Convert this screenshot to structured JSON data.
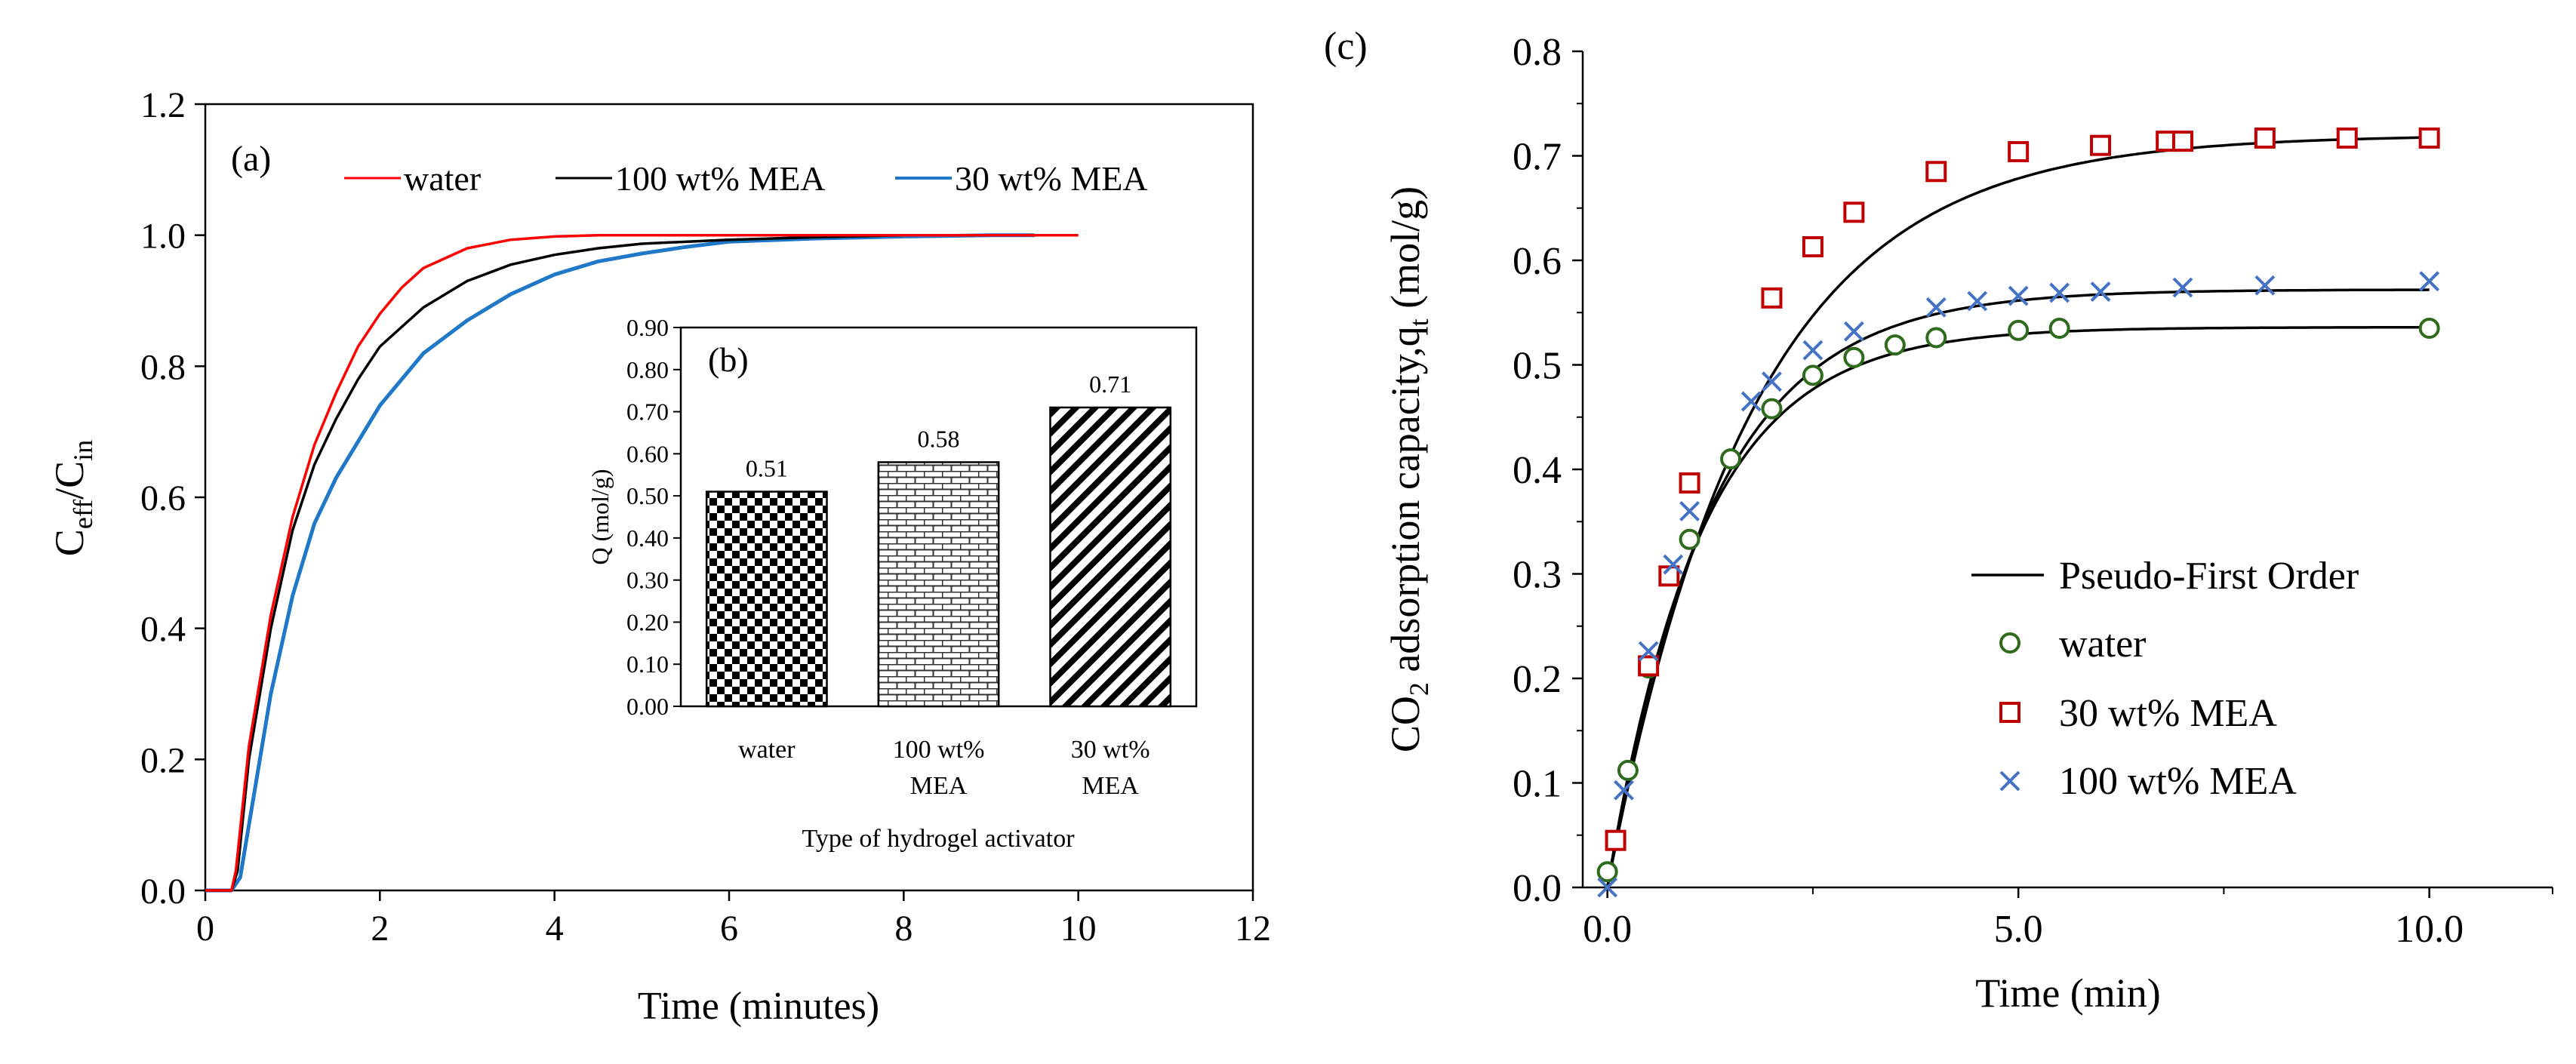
{
  "chart_data": [
    {
      "id": "a",
      "panel_label": "(a)",
      "type": "line",
      "xlabel": "Time (minutes)",
      "ylabel_main": "C",
      "ylabel_sub1": "eff",
      "ylabel_sep": "/C",
      "ylabel_sub2": "in",
      "xlim": [
        0,
        12
      ],
      "ylim": [
        0,
        1.2
      ],
      "xticks": [
        0,
        2,
        4,
        6,
        8,
        10,
        12
      ],
      "xtick_labels": [
        "0",
        "2",
        "4",
        "6",
        "8",
        "10",
        "12"
      ],
      "yticks": [
        0,
        0.2,
        0.4,
        0.6,
        0.8,
        1.0,
        1.2
      ],
      "ytick_labels": [
        "0.0",
        "0.2",
        "0.4",
        "0.6",
        "0.8",
        "1.0",
        "1.2"
      ],
      "legend_position": "top",
      "series": [
        {
          "name": "water",
          "color": "#ff0000",
          "x": [
            0,
            0.3,
            0.35,
            0.5,
            0.75,
            1.0,
            1.25,
            1.5,
            1.75,
            2.0,
            2.25,
            2.5,
            3.0,
            3.5,
            4.0,
            4.5,
            5.0,
            6.0,
            8.0,
            10.0
          ],
          "y": [
            0,
            0,
            0.03,
            0.22,
            0.42,
            0.57,
            0.68,
            0.76,
            0.83,
            0.88,
            0.92,
            0.95,
            0.98,
            0.993,
            0.998,
            1.0,
            1.0,
            1.0,
            1.0,
            1.0
          ]
        },
        {
          "name": "100 wt% MEA",
          "color": "#000000",
          "x": [
            0,
            0.3,
            0.37,
            0.5,
            0.75,
            1.0,
            1.25,
            1.5,
            1.75,
            2.0,
            2.5,
            3.0,
            3.5,
            4.0,
            4.5,
            5.0,
            6.0,
            7.0,
            8.0,
            9.0,
            9.5
          ],
          "y": [
            0,
            0,
            0.03,
            0.2,
            0.4,
            0.55,
            0.65,
            0.72,
            0.78,
            0.83,
            0.89,
            0.93,
            0.955,
            0.97,
            0.98,
            0.987,
            0.993,
            0.997,
            1.0,
            1.0,
            1.0
          ]
        },
        {
          "name": "30 wt% MEA",
          "color": "#1f78c8",
          "x": [
            0,
            0.3,
            0.4,
            0.5,
            0.75,
            1.0,
            1.25,
            1.5,
            2.0,
            2.5,
            3.0,
            3.5,
            4.0,
            4.5,
            5.0,
            5.5,
            6.0,
            7.0,
            8.0,
            9.0,
            9.5
          ],
          "y": [
            0,
            0,
            0.02,
            0.1,
            0.3,
            0.45,
            0.56,
            0.63,
            0.74,
            0.82,
            0.87,
            0.91,
            0.94,
            0.96,
            0.972,
            0.982,
            0.99,
            0.995,
            0.998,
            1.0,
            1.0
          ]
        }
      ]
    },
    {
      "id": "b",
      "panel_label": "(b)",
      "type": "bar",
      "xlabel": "Type of hydrogel activator",
      "ylabel": "Q (mol/g)",
      "ylim": [
        0,
        0.9
      ],
      "yticks": [
        0,
        0.1,
        0.2,
        0.3,
        0.4,
        0.5,
        0.6,
        0.7,
        0.8,
        0.9
      ],
      "ytick_labels": [
        "0.00",
        "0.10",
        "0.20",
        "0.30",
        "0.40",
        "0.50",
        "0.60",
        "0.70",
        "0.80",
        "0.90"
      ],
      "categories": [
        {
          "line1": "water",
          "line2": ""
        },
        {
          "line1": "100 wt%",
          "line2": "MEA"
        },
        {
          "line1": "30 wt%",
          "line2": "MEA"
        }
      ],
      "values": [
        0.51,
        0.58,
        0.71
      ],
      "value_labels": [
        "0.51",
        "0.58",
        "0.71"
      ],
      "patterns": [
        "checker",
        "brick",
        "diagonal"
      ]
    },
    {
      "id": "c",
      "panel_label": "(c)",
      "type": "scatter",
      "xlabel": "Time (min)",
      "ylabel_pre": "CO",
      "ylabel_sub": "2",
      "ylabel_mid": " adsorption capacity,q",
      "ylabel_sub2": "t",
      "ylabel_post": " (mol/g)",
      "xlim": [
        -0.3,
        11.5
      ],
      "ylim": [
        0,
        0.8
      ],
      "xticks": [
        0,
        5,
        10
      ],
      "xtick_labels": [
        "0.0",
        "5.0",
        "10.0"
      ],
      "yticks": [
        0,
        0.1,
        0.2,
        0.3,
        0.4,
        0.5,
        0.6,
        0.7,
        0.8
      ],
      "ytick_labels": [
        "0.0",
        "0.1",
        "0.2",
        "0.3",
        "0.4",
        "0.5",
        "0.6",
        "0.7",
        "0.8"
      ],
      "legend_position": "bottom-right",
      "fit_label": "Pseudo-First Order",
      "fit_color": "#000000",
      "series": [
        {
          "name": "water",
          "marker": "circle",
          "color": "#2e6b1c",
          "x": [
            0,
            0.25,
            0.5,
            1.0,
            1.5,
            2.0,
            2.5,
            3.0,
            3.5,
            4.0,
            5.0,
            5.5,
            10.0
          ],
          "y": [
            0.015,
            0.112,
            0.21,
            0.333,
            0.41,
            0.458,
            0.49,
            0.507,
            0.519,
            0.526,
            0.533,
            0.535,
            0.535
          ],
          "fit_qe": 0.536,
          "fit_k": 0.88
        },
        {
          "name": "30 wt% MEA",
          "marker": "square",
          "color": "#c00000",
          "x": [
            0.1,
            0.5,
            0.75,
            1.0,
            2.0,
            2.5,
            3.0,
            4.0,
            5.0,
            6.0,
            6.8,
            7.0,
            8.0,
            9.0,
            10.0
          ],
          "y": [
            0.045,
            0.212,
            0.298,
            0.387,
            0.564,
            0.613,
            0.646,
            0.685,
            0.704,
            0.71,
            0.714,
            0.714,
            0.717,
            0.717,
            0.717
          ],
          "fit_qe": 0.72,
          "fit_k": 0.57
        },
        {
          "name": "100 wt% MEA",
          "marker": "cross",
          "color": "#4472c4",
          "x": [
            0,
            0.2,
            0.5,
            0.8,
            1.0,
            1.75,
            2.0,
            2.5,
            3.0,
            4.0,
            4.5,
            5.0,
            5.5,
            6.0,
            7.0,
            8.0,
            10.0
          ],
          "y": [
            0.0,
            0.093,
            0.226,
            0.309,
            0.36,
            0.465,
            0.484,
            0.514,
            0.532,
            0.555,
            0.561,
            0.566,
            0.569,
            0.57,
            0.574,
            0.576,
            0.58
          ],
          "fit_qe": 0.572,
          "fit_k": 0.8
        }
      ]
    }
  ]
}
